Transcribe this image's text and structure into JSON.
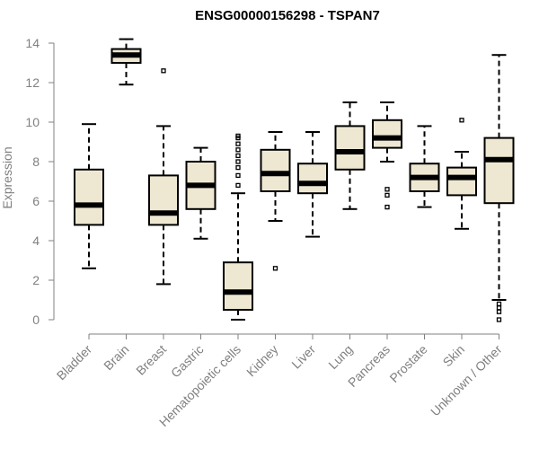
{
  "chart_data": {
    "type": "box",
    "title": "ENSG00000156298 - TSPAN7",
    "xlabel": "",
    "ylabel": "Expression",
    "ylim": [
      0,
      14
    ],
    "yticks": [
      0,
      2,
      4,
      6,
      8,
      10,
      12,
      14
    ],
    "categories": [
      "Bladder",
      "Brain",
      "Breast",
      "Gastric",
      "Hematopoietic cells",
      "Kidney",
      "Liver",
      "Lung",
      "Pancreas",
      "Prostate",
      "Skin",
      "Unknown / Other"
    ],
    "boxes": [
      {
        "category": "Bladder",
        "whisker_low": 2.6,
        "q1": 4.8,
        "median": 5.8,
        "q3": 7.6,
        "whisker_high": 9.9,
        "outliers": []
      },
      {
        "category": "Brain",
        "whisker_low": 11.9,
        "q1": 13.0,
        "median": 13.4,
        "q3": 13.7,
        "whisker_high": 14.2,
        "outliers": []
      },
      {
        "category": "Breast",
        "whisker_low": 1.8,
        "q1": 4.8,
        "median": 5.4,
        "q3": 7.3,
        "whisker_high": 9.8,
        "outliers": [
          12.6
        ]
      },
      {
        "category": "Gastric",
        "whisker_low": 4.1,
        "q1": 5.6,
        "median": 6.8,
        "q3": 8.0,
        "whisker_high": 8.7,
        "outliers": []
      },
      {
        "category": "Hematopoietic cells",
        "whisker_low": 0.0,
        "q1": 0.5,
        "median": 1.4,
        "q3": 2.9,
        "whisker_high": 6.4,
        "outliers": [
          6.8,
          7.3,
          7.7,
          8.0,
          8.3,
          8.6,
          8.9,
          9.2,
          9.3
        ]
      },
      {
        "category": "Kidney",
        "whisker_low": 5.0,
        "q1": 6.5,
        "median": 7.4,
        "q3": 8.6,
        "whisker_high": 9.5,
        "outliers": [
          2.6
        ]
      },
      {
        "category": "Liver",
        "whisker_low": 4.2,
        "q1": 6.4,
        "median": 6.9,
        "q3": 7.9,
        "whisker_high": 9.5,
        "outliers": []
      },
      {
        "category": "Lung",
        "whisker_low": 5.6,
        "q1": 7.6,
        "median": 8.5,
        "q3": 9.8,
        "whisker_high": 11.0,
        "outliers": []
      },
      {
        "category": "Pancreas",
        "whisker_low": 8.0,
        "q1": 8.7,
        "median": 9.2,
        "q3": 10.1,
        "whisker_high": 11.0,
        "outliers": [
          5.7,
          6.3,
          6.6
        ]
      },
      {
        "category": "Prostate",
        "whisker_low": 5.7,
        "q1": 6.5,
        "median": 7.2,
        "q3": 7.9,
        "whisker_high": 9.8,
        "outliers": []
      },
      {
        "category": "Skin",
        "whisker_low": 4.6,
        "q1": 6.3,
        "median": 7.2,
        "q3": 7.7,
        "whisker_high": 8.5,
        "outliers": [
          10.1
        ]
      },
      {
        "category": "Unknown / Other",
        "whisker_low": 1.0,
        "q1": 5.9,
        "median": 8.1,
        "q3": 9.2,
        "whisker_high": 13.4,
        "outliers": [
          0.0,
          0.4,
          0.6,
          0.8
        ]
      }
    ],
    "colors": {
      "box_fill": "#eee8d2",
      "box_stroke": "#000000",
      "axis": "#808080"
    },
    "grid": false,
    "legend": "none"
  }
}
